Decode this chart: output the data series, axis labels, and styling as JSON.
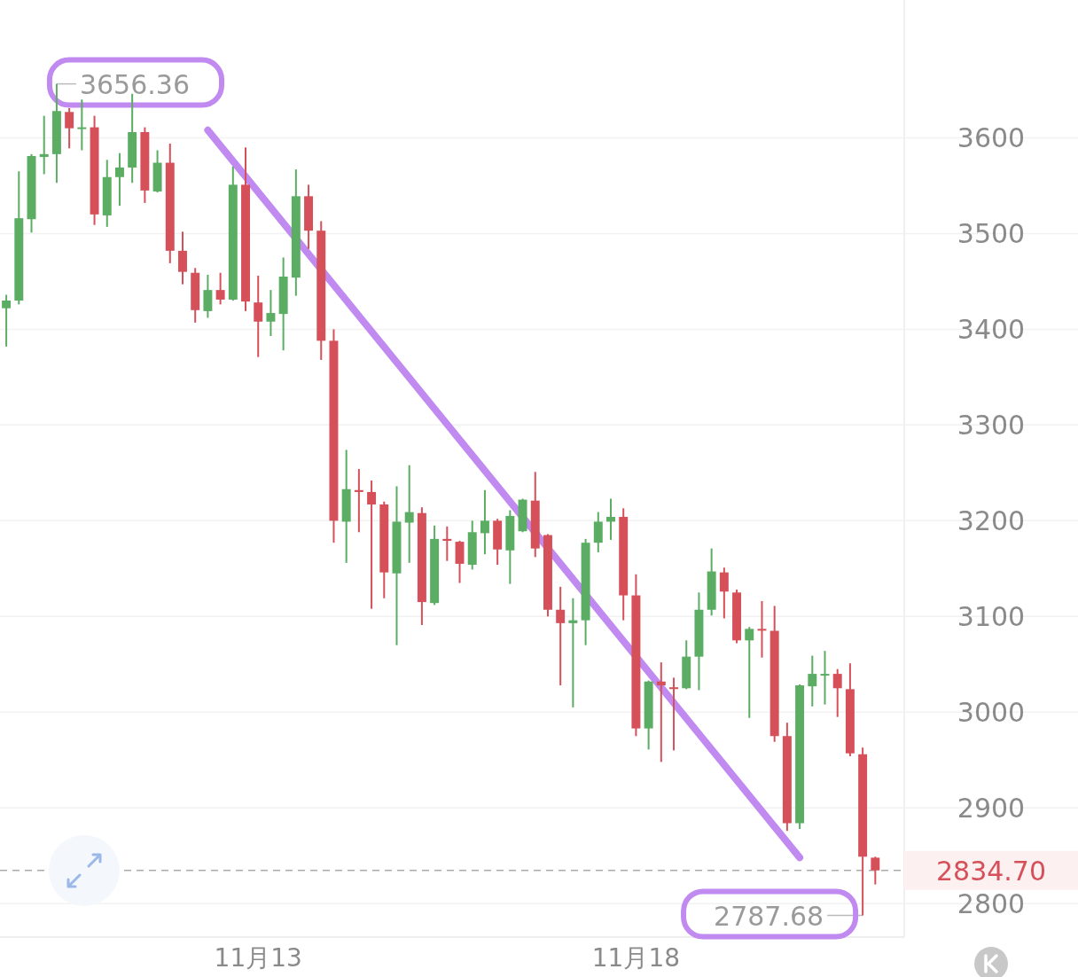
{
  "chart_data": {
    "type": "candlestick",
    "categories": [
      null,
      null,
      null,
      null,
      null,
      null,
      null,
      null,
      null,
      null,
      null,
      null,
      null,
      null,
      null,
      null,
      null,
      null,
      null,
      null,
      "11月13",
      null,
      null,
      null,
      null,
      null,
      null,
      null,
      null,
      null,
      null,
      null,
      null,
      null,
      null,
      null,
      null,
      null,
      null,
      null,
      null,
      null,
      null,
      null,
      null,
      null,
      null,
      null,
      null,
      null,
      "11月18",
      null,
      null,
      null,
      null,
      null,
      null,
      null,
      null,
      null,
      null,
      null,
      null,
      null,
      null,
      null,
      null,
      null,
      null,
      null
    ],
    "ohlc": [
      [
        3422,
        3436,
        3382,
        3430
      ],
      [
        3430,
        3565,
        3426,
        3516
      ],
      [
        3515,
        3583,
        3501,
        3581
      ],
      [
        3580,
        3623,
        3562,
        3583
      ],
      [
        3583,
        3656.36,
        3553,
        3628
      ],
      [
        3627,
        3631,
        3589,
        3610
      ],
      [
        3610,
        3640,
        3587,
        3611
      ],
      [
        3611,
        3623,
        3509,
        3520
      ],
      [
        3519,
        3577,
        3507,
        3559
      ],
      [
        3559,
        3584,
        3529,
        3569
      ],
      [
        3569,
        3646,
        3553,
        3606
      ],
      [
        3606,
        3611,
        3532,
        3545
      ],
      [
        3544,
        3587,
        3543,
        3574
      ],
      [
        3574,
        3594,
        3469,
        3482
      ],
      [
        3482,
        3502,
        3447,
        3460
      ],
      [
        3459,
        3464,
        3407,
        3420
      ],
      [
        3419,
        3457,
        3412,
        3441
      ],
      [
        3441,
        3459,
        3426,
        3431
      ],
      [
        3431,
        3570,
        3430,
        3551
      ],
      [
        3551,
        3590,
        3419,
        3429
      ],
      [
        3428,
        3456,
        3371,
        3408
      ],
      [
        3408,
        3441,
        3393,
        3417
      ],
      [
        3416,
        3475,
        3378,
        3455
      ],
      [
        3454,
        3567,
        3435,
        3539
      ],
      [
        3539,
        3551,
        3484,
        3503
      ],
      [
        3503,
        3513,
        3368,
        3388
      ],
      [
        3388,
        3400,
        3177,
        3200
      ],
      [
        3199,
        3274,
        3156,
        3233
      ],
      [
        3232,
        3254,
        3188,
        3230
      ],
      [
        3230,
        3242,
        3108,
        3217
      ],
      [
        3217,
        3220,
        3119,
        3146
      ],
      [
        3145,
        3236,
        3070,
        3199
      ],
      [
        3198,
        3258,
        3156,
        3209
      ],
      [
        3208,
        3214,
        3091,
        3115
      ],
      [
        3114,
        3195,
        3112,
        3181
      ],
      [
        3181,
        3194,
        3158,
        3179
      ],
      [
        3178,
        3179,
        3135,
        3155
      ],
      [
        3154,
        3200,
        3149,
        3188
      ],
      [
        3187,
        3232,
        3165,
        3200
      ],
      [
        3200,
        3202,
        3154,
        3170
      ],
      [
        3169,
        3211,
        3134,
        3205
      ],
      [
        3189,
        3223,
        3188,
        3222
      ],
      [
        3221,
        3251,
        3162,
        3171
      ],
      [
        3185,
        3186,
        3100,
        3107
      ],
      [
        3107,
        3131,
        3028,
        3093
      ],
      [
        3093,
        3119,
        3005,
        3096
      ],
      [
        3096,
        3181,
        3070,
        3177
      ],
      [
        3177,
        3209,
        3167,
        3199
      ],
      [
        3199,
        3223,
        3180,
        3204
      ],
      [
        3204,
        3213,
        3096,
        3122
      ],
      [
        3122,
        3144,
        2975,
        2983
      ],
      [
        2983,
        3033,
        2961,
        3032
      ],
      [
        3032,
        3052,
        2948,
        3028
      ],
      [
        3026,
        3036,
        2960,
        3025
      ],
      [
        3025,
        3075,
        3024,
        3058
      ],
      [
        3058,
        3125,
        3023,
        3107
      ],
      [
        3107,
        3171,
        3101,
        3147
      ],
      [
        3146,
        3151,
        3098,
        3126
      ],
      [
        3125,
        3128,
        3072,
        3075
      ],
      [
        3075,
        3089,
        2994,
        3087
      ],
      [
        3087,
        3116,
        3057,
        3086
      ],
      [
        3085,
        3111,
        2969,
        2975
      ],
      [
        2975,
        2989,
        2876,
        2884
      ],
      [
        2884,
        3029,
        2878,
        3028
      ],
      [
        3027,
        3059,
        3006,
        3040
      ],
      [
        3039,
        3064,
        3008,
        3040
      ],
      [
        3040,
        3045,
        2995,
        3025
      ],
      [
        3024,
        3051,
        2954,
        2957
      ],
      [
        2956,
        2963,
        2787.68,
        2849
      ],
      [
        2848,
        2849,
        2820,
        2834.7
      ]
    ],
    "colors": [
      "#5aad63",
      "#5aad63",
      "#5aad63",
      "#5aad63",
      "#5aad63",
      "#d6505a",
      "#5aad63",
      "#d6505a",
      "#5aad63",
      "#5aad63",
      "#5aad63",
      "#d6505a",
      "#5aad63",
      "#d6505a",
      "#d6505a",
      "#d6505a",
      "#5aad63",
      "#d6505a",
      "#5aad63",
      "#d6505a",
      "#d6505a",
      "#5aad63",
      "#5aad63",
      "#5aad63",
      "#d6505a",
      "#d6505a",
      "#d6505a",
      "#5aad63",
      "#d6505a",
      "#d6505a",
      "#d6505a",
      "#5aad63",
      "#5aad63",
      "#d6505a",
      "#5aad63",
      "#d6505a",
      "#d6505a",
      "#5aad63",
      "#5aad63",
      "#d6505a",
      "#5aad63",
      "#5aad63",
      "#d6505a",
      "#d6505a",
      "#d6505a",
      "#5aad63",
      "#5aad63",
      "#5aad63",
      "#5aad63",
      "#d6505a",
      "#d6505a",
      "#5aad63",
      "#d6505a",
      "#d6505a",
      "#5aad63",
      "#5aad63",
      "#5aad63",
      "#d6505a",
      "#d6505a",
      "#5aad63",
      "#d6505a",
      "#d6505a",
      "#d6505a",
      "#5aad63",
      "#5aad63",
      "#5aad63",
      "#d6505a",
      "#d6505a",
      "#d6505a",
      "#d6505a"
    ],
    "ylim": [
      2765,
      3744
    ],
    "yticks": [
      2800,
      2900,
      3000,
      3100,
      3200,
      3300,
      3400,
      3500,
      3600
    ],
    "grid": "y",
    "annotations": [
      "3656.36",
      "2787.68"
    ],
    "ref_lines": [
      {
        "axis": "y",
        "value": 2834.7,
        "label": "2834.70",
        "color": "#aaaaaa",
        "line_style": "dashed"
      }
    ],
    "series": [
      {
        "type": "line",
        "values": [
          null,
          null,
          null,
          null,
          null,
          null,
          null,
          null,
          null,
          null,
          null,
          null,
          null,
          null,
          null,
          null,
          3608,
          null,
          null,
          null,
          null,
          null,
          null,
          null,
          null,
          null,
          null,
          null,
          null,
          null,
          null,
          null,
          null,
          null,
          null,
          null,
          null,
          null,
          null,
          null,
          null,
          null,
          null,
          null,
          null,
          null,
          null,
          null,
          null,
          null,
          null,
          null,
          null,
          null,
          null,
          null,
          null,
          null,
          null,
          null,
          null,
          null,
          null,
          2848,
          null,
          null,
          null,
          null,
          null,
          null
        ],
        "color": "#c08af0"
      }
    ]
  }
}
